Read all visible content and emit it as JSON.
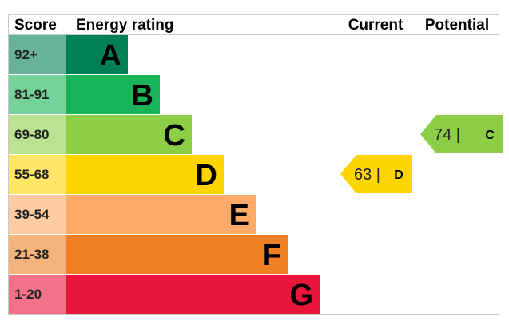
{
  "headers": {
    "score": "Score",
    "rating": "Energy rating",
    "current": "Current",
    "potential": "Potential"
  },
  "chart_data": {
    "type": "bar",
    "bands": [
      {
        "letter": "A",
        "range": "92+",
        "color": "#008054",
        "score_bg": "#66b398"
      },
      {
        "letter": "B",
        "range": "81-91",
        "color": "#19b459",
        "score_bg": "#75d29b"
      },
      {
        "letter": "C",
        "range": "69-80",
        "color": "#8dce46",
        "score_bg": "#bbe290"
      },
      {
        "letter": "D",
        "range": "55-68",
        "color": "#ffd500",
        "score_bg": "#ffe666"
      },
      {
        "letter": "E",
        "range": "39-54",
        "color": "#fcaa65",
        "score_bg": "#fdcca3"
      },
      {
        "letter": "F",
        "range": "21-38",
        "color": "#ef8023",
        "score_bg": "#f5b37b"
      },
      {
        "letter": "G",
        "range": "1-20",
        "color": "#e9153b",
        "score_bg": "#f27389"
      }
    ],
    "current": {
      "value": 63,
      "letter": "D",
      "color": "#ffd500"
    },
    "potential": {
      "value": 74,
      "letter": "C",
      "color": "#8dce46"
    }
  }
}
